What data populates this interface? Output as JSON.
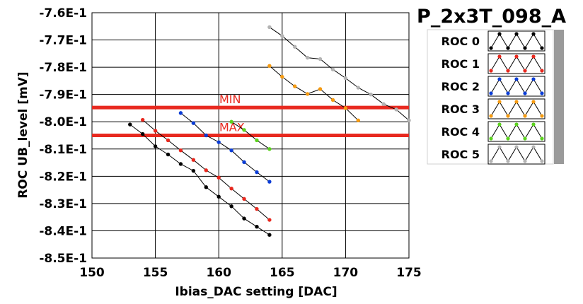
{
  "chart_data": {
    "type": "line",
    "title": "P_2x3T_098_A",
    "xlabel": "Ibias_DAC setting [DAC]",
    "ylabel": "ROC UB_level [mV]",
    "xlim": [
      150,
      175
    ],
    "ylim": [
      -0.85,
      -0.76
    ],
    "x_ticks": [
      150,
      155,
      160,
      165,
      170,
      175
    ],
    "x_tick_labels": [
      "150",
      "155",
      "160",
      "165",
      "170",
      "175"
    ],
    "y_ticks": [
      -0.76,
      -0.77,
      -0.78,
      -0.79,
      -0.8,
      -0.81,
      -0.82,
      -0.83,
      -0.84,
      -0.85
    ],
    "y_tick_labels": [
      "-7.6E-1",
      "-7.7E-1",
      "-7.8E-1",
      "-7.9E-1",
      "-8.0E-1",
      "-8.1E-1",
      "-8.2E-1",
      "-8.3E-1",
      "-8.4E-1",
      "-8.5E-1"
    ],
    "grid": true,
    "legend_position": "right",
    "reference_lines": [
      {
        "label": "MIN",
        "y": -0.7948,
        "color": "#e8291f"
      },
      {
        "label": "MAX",
        "y": -0.805,
        "color": "#e8291f"
      }
    ],
    "series": [
      {
        "name": "ROC 0",
        "color": "#000000",
        "x": [
          153,
          154,
          155,
          156,
          157,
          158,
          159,
          160,
          161,
          162,
          163,
          164
        ],
        "y": [
          -0.801,
          -0.8045,
          -0.809,
          -0.812,
          -0.8155,
          -0.818,
          -0.824,
          -0.8275,
          -0.831,
          -0.8355,
          -0.8385,
          -0.8415
        ]
      },
      {
        "name": "ROC 1",
        "color": "#e8281e",
        "x": [
          154,
          155,
          156,
          157,
          158,
          159,
          160,
          161,
          162,
          163,
          164
        ],
        "y": [
          -0.7993,
          -0.8033,
          -0.8068,
          -0.8105,
          -0.814,
          -0.8178,
          -0.8205,
          -0.8245,
          -0.8283,
          -0.832,
          -0.836
        ]
      },
      {
        "name": "ROC 2",
        "color": "#0a3cd6",
        "x": [
          157,
          158,
          159,
          160,
          161,
          162,
          163,
          164
        ],
        "y": [
          -0.7968,
          -0.8005,
          -0.805,
          -0.8075,
          -0.8105,
          -0.8148,
          -0.8185,
          -0.822
        ]
      },
      {
        "name": "ROC 3",
        "color": "#f59a10",
        "x": [
          164,
          165,
          166,
          167,
          168,
          169,
          170,
          171
        ],
        "y": [
          -0.7795,
          -0.7835,
          -0.787,
          -0.7898,
          -0.788,
          -0.792,
          -0.795,
          -0.7995
        ]
      },
      {
        "name": "ROC 4",
        "color": "#5bd21e",
        "x": [
          161,
          162,
          163,
          164
        ],
        "y": [
          -0.8,
          -0.803,
          -0.8068,
          -0.81
        ]
      },
      {
        "name": "ROC 5",
        "color": "#b3b3b3",
        "x": [
          164,
          165,
          166,
          167,
          168,
          169,
          170,
          171,
          172,
          173,
          174,
          175
        ],
        "y": [
          -0.7653,
          -0.7685,
          -0.7725,
          -0.7765,
          -0.777,
          -0.7808,
          -0.784,
          -0.7875,
          -0.79,
          -0.7935,
          -0.7955,
          -0.7995
        ]
      }
    ]
  }
}
